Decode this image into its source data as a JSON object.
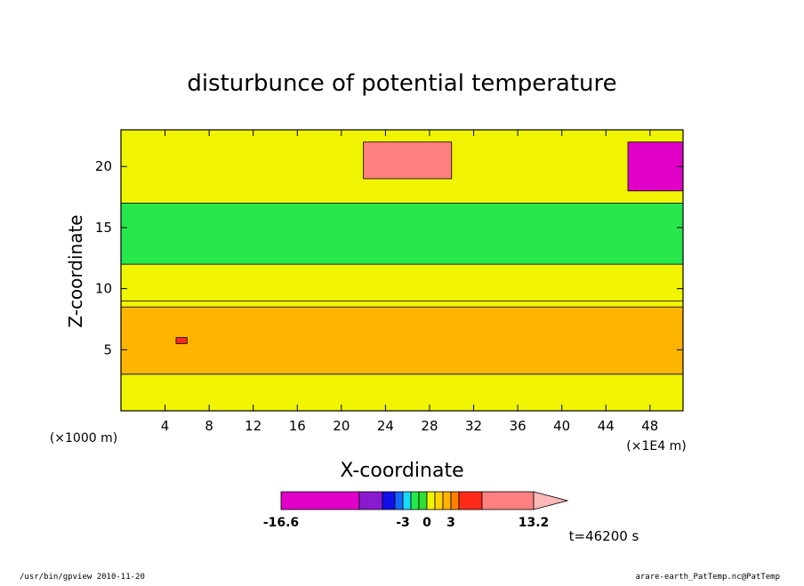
{
  "chart_data": {
    "type": "heatmap",
    "title": "disturbunce of potential temperature",
    "xlabel": "X-coordinate",
    "ylabel": "Z-coordinate",
    "x_unit_label": "(×1E4 m)",
    "y_unit_label": "(×1000 m)",
    "xlim": [
      0,
      51
    ],
    "ylim": [
      0,
      23
    ],
    "x_ticks": [
      4,
      8,
      12,
      16,
      20,
      24,
      28,
      32,
      36,
      40,
      44,
      48
    ],
    "y_ticks": [
      5,
      10,
      15,
      20
    ],
    "colorbar": {
      "min_label": "-16.6",
      "max_label": "13.2",
      "tick_labels": [
        "-3",
        "0",
        "3"
      ],
      "levels": [
        -16.6,
        -7,
        -5,
        -4,
        -3,
        -2,
        -1,
        0,
        1,
        2,
        3,
        4,
        6,
        13.2
      ],
      "colors": [
        "#e000c8",
        "#8a1ad0",
        "#1010e8",
        "#1468ff",
        "#18d8ff",
        "#26e84a",
        "#30e030",
        "#f0f400",
        "#ffd200",
        "#ffb400",
        "#ff8000",
        "#ff2a1a",
        "#ff8080",
        "#ffb8b8"
      ]
    },
    "regions": [
      {
        "name": "surface band",
        "x": [
          0,
          51
        ],
        "z": [
          0,
          3
        ],
        "value": 0.5
      },
      {
        "name": "lower warm band",
        "x": [
          0,
          51
        ],
        "z": [
          3,
          8.5
        ],
        "value": 2
      },
      {
        "name": "warm cell",
        "x": [
          5,
          6
        ],
        "z": [
          5.5,
          6
        ],
        "value": 4
      },
      {
        "name": "mid band",
        "x": [
          0,
          51
        ],
        "z": [
          9,
          12
        ],
        "value": 0.5
      },
      {
        "name": "cool band",
        "x": [
          0,
          51
        ],
        "z": [
          12,
          17
        ],
        "value": -1.5
      },
      {
        "name": "upper warm cell",
        "x": [
          22,
          30
        ],
        "z": [
          19,
          22
        ],
        "value": 6
      },
      {
        "name": "upper cold cell",
        "x": [
          46,
          51
        ],
        "z": [
          18,
          22
        ],
        "value": -8
      }
    ]
  },
  "timestamp_label": "t=46200 s",
  "footer": {
    "left": "/usr/bin/gpview   2010-11-20",
    "right": "arare-earth_PatTemp.nc@PatTemp"
  }
}
